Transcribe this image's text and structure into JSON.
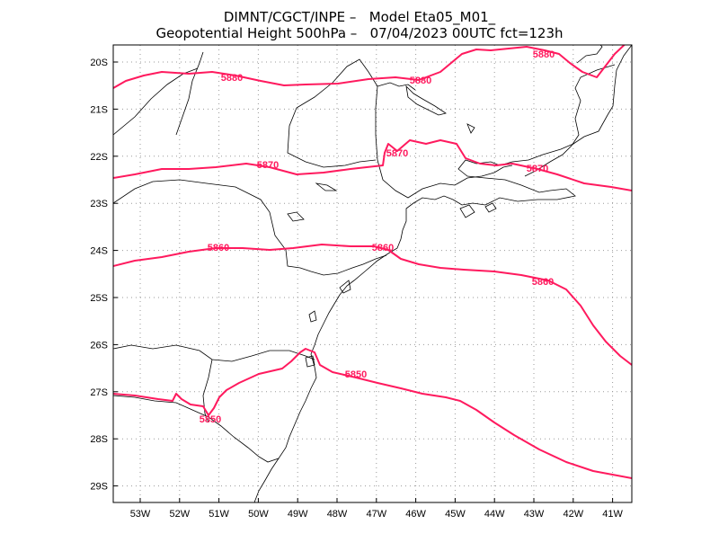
{
  "title": {
    "line1": "DIMNT/CGCT/INPE –   Model Eta05_M01_",
    "line2": "Geopotential Height 500hPa –   07/04/2023 00UTC fct=123h"
  },
  "colors": {
    "contour": "#ff1a5e",
    "coast": "#000000",
    "grid": "#9a9a9a"
  },
  "lat_ticks": [
    "20S",
    "21S",
    "22S",
    "23S",
    "24S",
    "25S",
    "26S",
    "27S",
    "28S",
    "29S"
  ],
  "lon_ticks": [
    "53W",
    "52W",
    "51W",
    "50W",
    "49W",
    "48W",
    "47W",
    "46W",
    "45W",
    "44W",
    "43W",
    "42W",
    "41W"
  ],
  "contour_labels": [
    {
      "id": "c5880a",
      "text": "5880"
    },
    {
      "id": "c5880b",
      "text": "5880"
    },
    {
      "id": "c5880c",
      "text": "5880"
    },
    {
      "id": "c5870a",
      "text": "5870"
    },
    {
      "id": "c5870b",
      "text": "5870"
    },
    {
      "id": "c5870c",
      "text": "5870"
    },
    {
      "id": "c5860a",
      "text": "5860"
    },
    {
      "id": "c5860b",
      "text": "5860"
    },
    {
      "id": "c5860c",
      "text": "5860"
    },
    {
      "id": "c5850a",
      "text": "5850"
    },
    {
      "id": "c5850b",
      "text": "5850"
    }
  ]
}
